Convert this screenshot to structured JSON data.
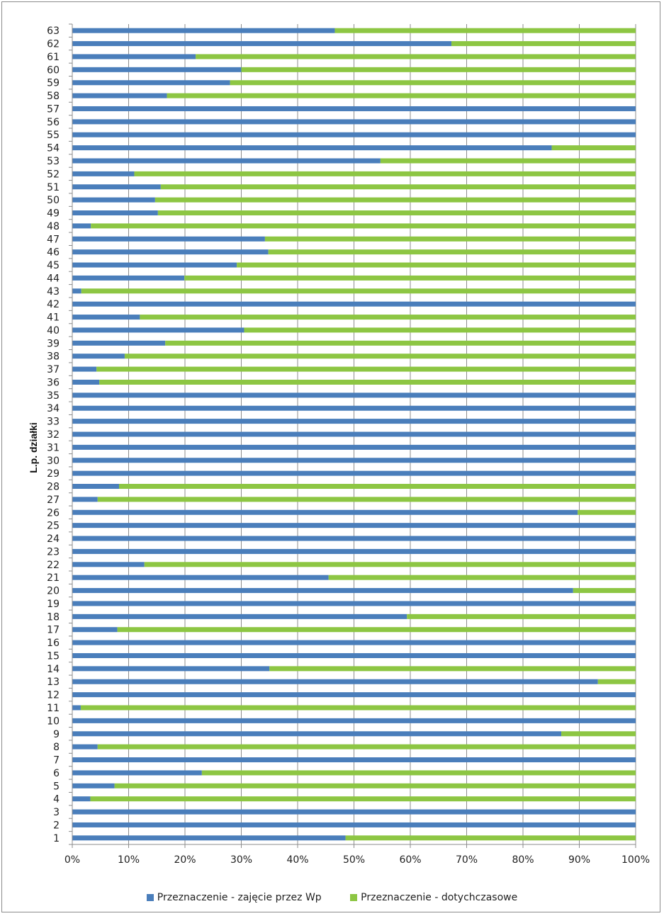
{
  "chart_data": {
    "type": "bar",
    "orientation": "horizontal",
    "stacked": "percent",
    "ylabel": "L.p. działki",
    "xlabel": "",
    "xlim": [
      0,
      100
    ],
    "x_ticks": [
      "0%",
      "10%",
      "20%",
      "30%",
      "40%",
      "50%",
      "60%",
      "70%",
      "80%",
      "90%",
      "100%"
    ],
    "grid": true,
    "legend_position": "bottom",
    "categories": [
      "1",
      "2",
      "3",
      "4",
      "5",
      "6",
      "7",
      "8",
      "9",
      "10",
      "11",
      "12",
      "13",
      "14",
      "15",
      "16",
      "17",
      "18",
      "19",
      "20",
      "21",
      "22",
      "23",
      "24",
      "25",
      "26",
      "27",
      "28",
      "29",
      "30",
      "31",
      "32",
      "33",
      "34",
      "35",
      "36",
      "37",
      "38",
      "39",
      "40",
      "41",
      "42",
      "43",
      "44",
      "45",
      "46",
      "47",
      "48",
      "49",
      "50",
      "51",
      "52",
      "53",
      "54",
      "55",
      "56",
      "57",
      "58",
      "59",
      "60",
      "61",
      "62",
      "63"
    ],
    "series": [
      {
        "name": "Przeznaczenie - zajęcie przez Wp",
        "color": "#4a7ebb",
        "values": [
          48.5,
          100,
          100,
          3.2,
          7.5,
          23,
          100,
          4.5,
          86.8,
          100,
          1.5,
          100,
          93.3,
          35,
          100,
          100,
          8,
          59.4,
          100,
          88.9,
          45.5,
          12.8,
          100,
          100,
          100,
          89.7,
          4.5,
          8.3,
          100,
          100,
          100,
          100,
          100,
          100,
          100,
          4.8,
          4.3,
          9.3,
          16.5,
          30.5,
          12,
          100,
          1.6,
          19.9,
          29.2,
          34.8,
          34.2,
          3.3,
          15.2,
          14.7,
          15.7,
          11,
          54.7,
          85.1,
          100,
          100,
          100,
          16.8,
          28,
          30,
          21.9,
          67.3,
          46.6
        ]
      },
      {
        "name": "Przeznaczenie - dotychczasowe",
        "color": "#8dc643",
        "values": [
          51.5,
          0,
          0,
          96.8,
          92.5,
          77,
          0,
          95.5,
          13.2,
          0,
          98.5,
          0,
          6.7,
          65,
          0,
          0,
          92,
          40.6,
          0,
          11.1,
          54.5,
          87.2,
          0,
          0,
          0,
          10.3,
          95.5,
          91.7,
          0,
          0,
          0,
          0,
          0,
          0,
          0,
          95.2,
          95.7,
          90.7,
          83.5,
          69.5,
          88,
          0,
          98.4,
          80.1,
          70.8,
          65.2,
          65.8,
          96.7,
          84.8,
          85.3,
          84.3,
          89,
          45.3,
          14.9,
          0,
          0,
          0,
          83.2,
          72,
          70,
          78.1,
          32.7,
          53.4
        ]
      }
    ]
  }
}
